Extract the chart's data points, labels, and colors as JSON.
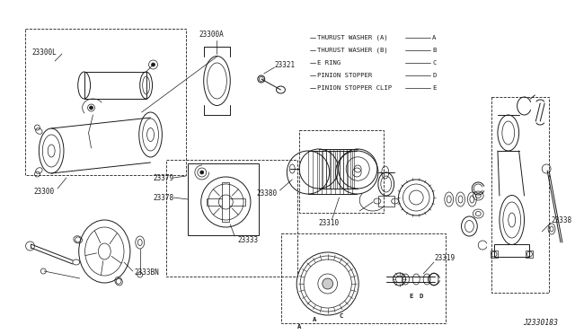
{
  "background_color": "#ffffff",
  "line_color": "#1a1a1a",
  "text_color": "#1a1a1a",
  "font_size_label": 5.5,
  "font_size_legend": 5.2,
  "font_size_ref": 5.8,
  "diagram_ref": "J2330183",
  "legend_items": [
    {
      "text": "THURUST WASHER (A)",
      "letter": "A"
    },
    {
      "text": "THURUST WASHER (B)",
      "letter": "B"
    },
    {
      "text": "E RING",
      "letter": "C"
    },
    {
      "text": "PINION STOPPER",
      "letter": "D"
    },
    {
      "text": "PINION STOPPER CLIP",
      "letter": "E"
    }
  ]
}
